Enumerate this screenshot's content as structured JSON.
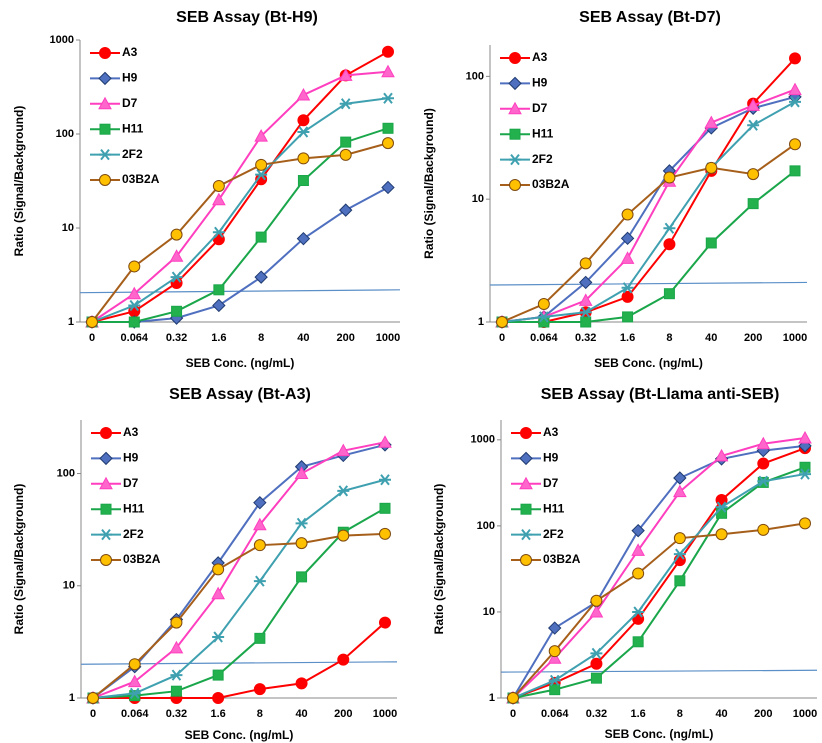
{
  "chart_data": [
    {
      "type": "line",
      "title": "SEB Assay  (Bt-H9)",
      "x_label": "SEB Conc. (ng/mL)",
      "y_label": "Ratio (Signal/Background)",
      "log_y": true,
      "categories": [
        "0",
        "0.064",
        "0.32",
        "1.6",
        "8",
        "40",
        "200",
        "1000"
      ],
      "ylim": [
        1,
        1000
      ],
      "yticks": [
        1,
        10,
        100,
        1000
      ],
      "legend": "upper left",
      "hline": {
        "values": [
          2.05,
          2.2
        ],
        "color": "#5b8fc7"
      },
      "series": [
        {
          "name": "A3",
          "color": "#ff0000",
          "marker": "circle",
          "marker_fill": "#ff0000",
          "values": [
            1,
            1.3,
            2.6,
            7.6,
            33,
            140,
            420,
            750
          ]
        },
        {
          "name": "H9",
          "color": "#4f6fbf",
          "marker": "diamond",
          "marker_fill": "#4f6fbf",
          "values": [
            1,
            1,
            1.1,
            1.5,
            3,
            7.7,
            15.5,
            27
          ]
        },
        {
          "name": "D7",
          "color": "#ff3fbf",
          "marker": "triangle",
          "marker_fill": "#ff66cc",
          "values": [
            1,
            2,
            5,
            20,
            95,
            260,
            420,
            460
          ]
        },
        {
          "name": "H11",
          "color": "#1aa64a",
          "marker": "square",
          "marker_fill": "#22b14c",
          "values": [
            1,
            1,
            1.3,
            2.2,
            8,
            32,
            82,
            115
          ]
        },
        {
          "name": "2F2",
          "color": "#3fa0b0",
          "marker": "star",
          "marker_fill": "#3fa0b0",
          "values": [
            1,
            1.5,
            3,
            9,
            37,
            105,
            210,
            240
          ]
        },
        {
          "name": "03B2A",
          "color": "#a65f1a",
          "marker": "circle",
          "marker_fill": "#ffc000",
          "values": [
            1,
            3.9,
            8.5,
            28,
            47,
            55,
            60,
            80
          ]
        }
      ]
    },
    {
      "type": "line",
      "title": "SEB Assay  (Bt-D7)",
      "x_label": "SEB Conc. (ng/mL)",
      "y_label": "Ratio (Signal/Background)",
      "log_y": true,
      "categories": [
        "0",
        "0.064",
        "0.32",
        "1.6",
        "8",
        "40",
        "200",
        "1000"
      ],
      "ylim": [
        1,
        180
      ],
      "yticks": [
        1,
        10,
        100
      ],
      "legend": "upper left",
      "hline": {
        "values": [
          2.0,
          2.1
        ],
        "color": "#5b8fc7"
      },
      "series": [
        {
          "name": "A3",
          "color": "#ff0000",
          "marker": "circle",
          "marker_fill": "#ff0000",
          "values": [
            1,
            1,
            1.2,
            1.6,
            4.3,
            17,
            60,
            140
          ]
        },
        {
          "name": "H9",
          "color": "#4f6fbf",
          "marker": "diamond",
          "marker_fill": "#4f6fbf",
          "values": [
            1,
            1.1,
            2.1,
            4.8,
            17,
            38,
            55,
            68
          ]
        },
        {
          "name": "D7",
          "color": "#ff3fbf",
          "marker": "triangle",
          "marker_fill": "#ff66cc",
          "values": [
            1,
            1.1,
            1.5,
            3.3,
            14,
            42,
            58,
            78
          ]
        },
        {
          "name": "H11",
          "color": "#1aa64a",
          "marker": "square",
          "marker_fill": "#22b14c",
          "values": [
            1,
            1,
            1,
            1.1,
            1.7,
            4.4,
            9.2,
            17
          ]
        },
        {
          "name": "2F2",
          "color": "#3fa0b0",
          "marker": "star",
          "marker_fill": "#3fa0b0",
          "values": [
            1,
            1.1,
            1.2,
            1.9,
            5.8,
            18,
            40,
            62
          ]
        },
        {
          "name": "03B2A",
          "color": "#a65f1a",
          "marker": "circle",
          "marker_fill": "#ffc000",
          "values": [
            1,
            1.4,
            3,
            7.5,
            15,
            18,
            16,
            28
          ]
        }
      ]
    },
    {
      "type": "line",
      "title": "SEB Assay  (Bt-A3)",
      "x_label": "SEB Conc. (ng/mL)",
      "y_label": "Ratio (Signal/Background)",
      "log_y": true,
      "categories": [
        "0",
        "0.064",
        "0.32",
        "1.6",
        "8",
        "40",
        "200",
        "1000"
      ],
      "ylim": [
        1,
        300
      ],
      "yticks": [
        1,
        10,
        100
      ],
      "legend": "upper left",
      "hline": {
        "values": [
          2.0,
          2.1
        ],
        "color": "#5b8fc7"
      },
      "series": [
        {
          "name": "A3",
          "color": "#ff0000",
          "marker": "circle",
          "marker_fill": "#ff0000",
          "values": [
            1,
            1,
            1,
            1,
            1.2,
            1.35,
            2.2,
            4.7
          ]
        },
        {
          "name": "H9",
          "color": "#4f6fbf",
          "marker": "diamond",
          "marker_fill": "#4f6fbf",
          "values": [
            1,
            1.9,
            5,
            16,
            55,
            115,
            145,
            180
          ]
        },
        {
          "name": "D7",
          "color": "#ff3fbf",
          "marker": "triangle",
          "marker_fill": "#ff66cc",
          "values": [
            1,
            1.4,
            2.8,
            8.5,
            35,
            100,
            160,
            190
          ]
        },
        {
          "name": "H11",
          "color": "#1aa64a",
          "marker": "square",
          "marker_fill": "#22b14c",
          "values": [
            1,
            1.05,
            1.15,
            1.6,
            3.4,
            12,
            30,
            49
          ]
        },
        {
          "name": "2F2",
          "color": "#3fa0b0",
          "marker": "star",
          "marker_fill": "#3fa0b0",
          "values": [
            1,
            1.1,
            1.6,
            3.5,
            11,
            36,
            70,
            88
          ]
        },
        {
          "name": "03B2A",
          "color": "#a65f1a",
          "marker": "circle",
          "marker_fill": "#ffc000",
          "values": [
            1,
            2,
            4.7,
            14,
            23,
            24,
            28,
            29
          ]
        }
      ]
    },
    {
      "type": "line",
      "title": "SEB Assay  (Bt-Llama anti-SEB)",
      "x_label": "SEB Conc. (ng/mL)",
      "y_label": "Ratio (Signal/Background)",
      "log_y": true,
      "categories": [
        "0",
        "0.064",
        "0.32",
        "1.6",
        "8",
        "40",
        "200",
        "1000"
      ],
      "ylim": [
        1,
        1700
      ],
      "yticks": [
        1,
        10,
        100,
        1000
      ],
      "legend": "upper left",
      "hline": {
        "values": [
          2.0,
          2.1
        ],
        "color": "#5b8fc7"
      },
      "series": [
        {
          "name": "A3",
          "color": "#ff0000",
          "marker": "circle",
          "marker_fill": "#ff0000",
          "values": [
            1,
            1.5,
            2.5,
            8.3,
            40,
            200,
            530,
            800
          ]
        },
        {
          "name": "H9",
          "color": "#4f6fbf",
          "marker": "diamond",
          "marker_fill": "#4f6fbf",
          "values": [
            1,
            6.5,
            13,
            88,
            360,
            600,
            750,
            850
          ]
        },
        {
          "name": "D7",
          "color": "#ff3fbf",
          "marker": "triangle",
          "marker_fill": "#ff66cc",
          "values": [
            1,
            2.9,
            10,
            52,
            250,
            650,
            900,
            1050
          ]
        },
        {
          "name": "H11",
          "color": "#1aa64a",
          "marker": "square",
          "marker_fill": "#22b14c",
          "values": [
            1,
            1.25,
            1.7,
            4.5,
            23,
            140,
            320,
            480
          ]
        },
        {
          "name": "2F2",
          "color": "#3fa0b0",
          "marker": "star",
          "marker_fill": "#3fa0b0",
          "values": [
            1,
            1.6,
            3.3,
            10,
            47,
            165,
            330,
            400
          ]
        },
        {
          "name": "03B2A",
          "color": "#a65f1a",
          "marker": "circle",
          "marker_fill": "#ffc000",
          "values": [
            1,
            3.5,
            13.5,
            28,
            72,
            80,
            90,
            107
          ]
        }
      ]
    }
  ]
}
